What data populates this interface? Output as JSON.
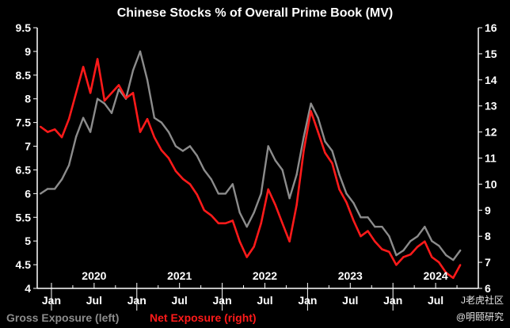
{
  "chart_data": {
    "type": "line",
    "title": "Chinese Stocks % of Overall Prime Book (MV)",
    "x_start": "2020-01",
    "x_end": "2024-12",
    "left_axis": {
      "min": 4,
      "max": 9.5,
      "step": 0.5,
      "ticks": [
        "9.5",
        "9",
        "8.5",
        "8",
        "7.5",
        "7",
        "6.5",
        "6",
        "5.5",
        "5",
        "4.5",
        "4"
      ]
    },
    "right_axis": {
      "min": 6,
      "max": 16,
      "step": 1,
      "ticks": [
        "16",
        "15",
        "14",
        "13",
        "12",
        "11",
        "10",
        "9",
        "8",
        "7",
        "6"
      ]
    },
    "month_ticks": [
      "Jan",
      "Jul",
      "Jan",
      "Jul",
      "Jan",
      "Jul",
      "Jan",
      "Jul",
      "Jan",
      "Jul"
    ],
    "years": [
      "2020",
      "2021",
      "2022",
      "2023",
      "2024"
    ],
    "legend": {
      "gross": "Gross Exposure (left)",
      "net": "Net Exposure (right)"
    },
    "colors": {
      "gross": "#8c8c8c",
      "net": "#ff1a1a",
      "background": "#000000",
      "axis": "#ffffff"
    },
    "grid": false,
    "series": [
      {
        "key": "gross",
        "axis": "left",
        "points": [
          [
            "2019-11-15",
            6.0
          ],
          [
            "2019-12-15",
            6.1
          ],
          [
            "2020-01-15",
            6.1
          ],
          [
            "2020-02-15",
            6.3
          ],
          [
            "2020-03-15",
            6.6
          ],
          [
            "2020-04-15",
            7.2
          ],
          [
            "2020-05-15",
            7.6
          ],
          [
            "2020-06-15",
            7.3
          ],
          [
            "2020-07-15",
            8.0
          ],
          [
            "2020-08-15",
            7.9
          ],
          [
            "2020-09-15",
            7.7
          ],
          [
            "2020-10-15",
            8.2
          ],
          [
            "2020-11-15",
            8.0
          ],
          [
            "2020-12-15",
            8.6
          ],
          [
            "2021-01-15",
            9.0
          ],
          [
            "2021-02-15",
            8.4
          ],
          [
            "2021-03-15",
            7.6
          ],
          [
            "2021-04-15",
            7.5
          ],
          [
            "2021-05-15",
            7.3
          ],
          [
            "2021-06-15",
            7.0
          ],
          [
            "2021-07-15",
            6.9
          ],
          [
            "2021-08-15",
            7.0
          ],
          [
            "2021-09-15",
            6.8
          ],
          [
            "2021-10-15",
            6.5
          ],
          [
            "2021-11-15",
            6.3
          ],
          [
            "2021-12-15",
            6.0
          ],
          [
            "2022-01-15",
            6.0
          ],
          [
            "2022-02-15",
            6.2
          ],
          [
            "2022-03-15",
            5.6
          ],
          [
            "2022-04-15",
            5.3
          ],
          [
            "2022-05-15",
            5.6
          ],
          [
            "2022-06-15",
            6.0
          ],
          [
            "2022-07-15",
            7.0
          ],
          [
            "2022-08-15",
            6.7
          ],
          [
            "2022-09-15",
            6.5
          ],
          [
            "2022-10-15",
            5.9
          ],
          [
            "2022-11-15",
            6.4
          ],
          [
            "2022-12-15",
            7.2
          ],
          [
            "2023-01-15",
            7.9
          ],
          [
            "2023-02-15",
            7.6
          ],
          [
            "2023-03-15",
            7.1
          ],
          [
            "2023-04-15",
            6.9
          ],
          [
            "2023-05-15",
            6.4
          ],
          [
            "2023-06-15",
            6.0
          ],
          [
            "2023-07-15",
            5.8
          ],
          [
            "2023-08-15",
            5.5
          ],
          [
            "2023-09-15",
            5.5
          ],
          [
            "2023-10-15",
            5.3
          ],
          [
            "2023-11-15",
            5.3
          ],
          [
            "2023-12-15",
            5.1
          ],
          [
            "2024-01-15",
            4.7
          ],
          [
            "2024-02-15",
            4.8
          ],
          [
            "2024-03-15",
            5.0
          ],
          [
            "2024-04-15",
            5.1
          ],
          [
            "2024-05-15",
            5.3
          ],
          [
            "2024-06-15",
            5.0
          ],
          [
            "2024-07-15",
            4.9
          ],
          [
            "2024-08-15",
            4.7
          ],
          [
            "2024-09-15",
            4.6
          ],
          [
            "2024-10-15",
            4.8
          ]
        ]
      },
      {
        "key": "net",
        "axis": "right",
        "points": [
          [
            "2019-11-15",
            12.2
          ],
          [
            "2019-12-15",
            12.0
          ],
          [
            "2020-01-15",
            12.1
          ],
          [
            "2020-02-15",
            11.8
          ],
          [
            "2020-03-15",
            12.5
          ],
          [
            "2020-04-15",
            13.5
          ],
          [
            "2020-05-15",
            14.5
          ],
          [
            "2020-06-15",
            13.5
          ],
          [
            "2020-07-15",
            14.8
          ],
          [
            "2020-08-15",
            13.2
          ],
          [
            "2020-09-15",
            13.5
          ],
          [
            "2020-10-15",
            13.8
          ],
          [
            "2020-11-15",
            13.3
          ],
          [
            "2020-12-15",
            13.5
          ],
          [
            "2021-01-15",
            12.0
          ],
          [
            "2021-02-15",
            12.5
          ],
          [
            "2021-03-15",
            11.8
          ],
          [
            "2021-04-15",
            11.3
          ],
          [
            "2021-05-15",
            11.0
          ],
          [
            "2021-06-15",
            10.5
          ],
          [
            "2021-07-15",
            10.2
          ],
          [
            "2021-08-15",
            10.0
          ],
          [
            "2021-09-15",
            9.6
          ],
          [
            "2021-10-15",
            9.0
          ],
          [
            "2021-11-15",
            8.8
          ],
          [
            "2021-12-15",
            8.5
          ],
          [
            "2022-01-15",
            8.5
          ],
          [
            "2022-02-15",
            8.6
          ],
          [
            "2022-03-15",
            7.8
          ],
          [
            "2022-04-15",
            7.2
          ],
          [
            "2022-05-15",
            7.6
          ],
          [
            "2022-06-15",
            8.5
          ],
          [
            "2022-07-15",
            9.8
          ],
          [
            "2022-08-15",
            9.2
          ],
          [
            "2022-09-15",
            8.5
          ],
          [
            "2022-10-15",
            7.8
          ],
          [
            "2022-11-15",
            9.2
          ],
          [
            "2022-12-15",
            11.3
          ],
          [
            "2023-01-15",
            12.8
          ],
          [
            "2023-02-15",
            12.0
          ],
          [
            "2023-03-15",
            11.2
          ],
          [
            "2023-04-15",
            10.8
          ],
          [
            "2023-05-15",
            9.8
          ],
          [
            "2023-06-15",
            9.3
          ],
          [
            "2023-07-15",
            8.6
          ],
          [
            "2023-08-15",
            8.0
          ],
          [
            "2023-09-15",
            8.2
          ],
          [
            "2023-10-15",
            7.8
          ],
          [
            "2023-11-15",
            7.5
          ],
          [
            "2023-12-15",
            7.4
          ],
          [
            "2024-01-15",
            6.9
          ],
          [
            "2024-02-15",
            7.2
          ],
          [
            "2024-03-15",
            7.3
          ],
          [
            "2024-04-15",
            7.6
          ],
          [
            "2024-05-15",
            7.8
          ],
          [
            "2024-06-15",
            7.2
          ],
          [
            "2024-07-15",
            7.0
          ],
          [
            "2024-08-15",
            6.6
          ],
          [
            "2024-09-15",
            6.4
          ],
          [
            "2024-10-15",
            6.9
          ]
        ]
      }
    ]
  },
  "watermark": {
    "main": "J老虎社区",
    "sub": "@明颐研究"
  }
}
